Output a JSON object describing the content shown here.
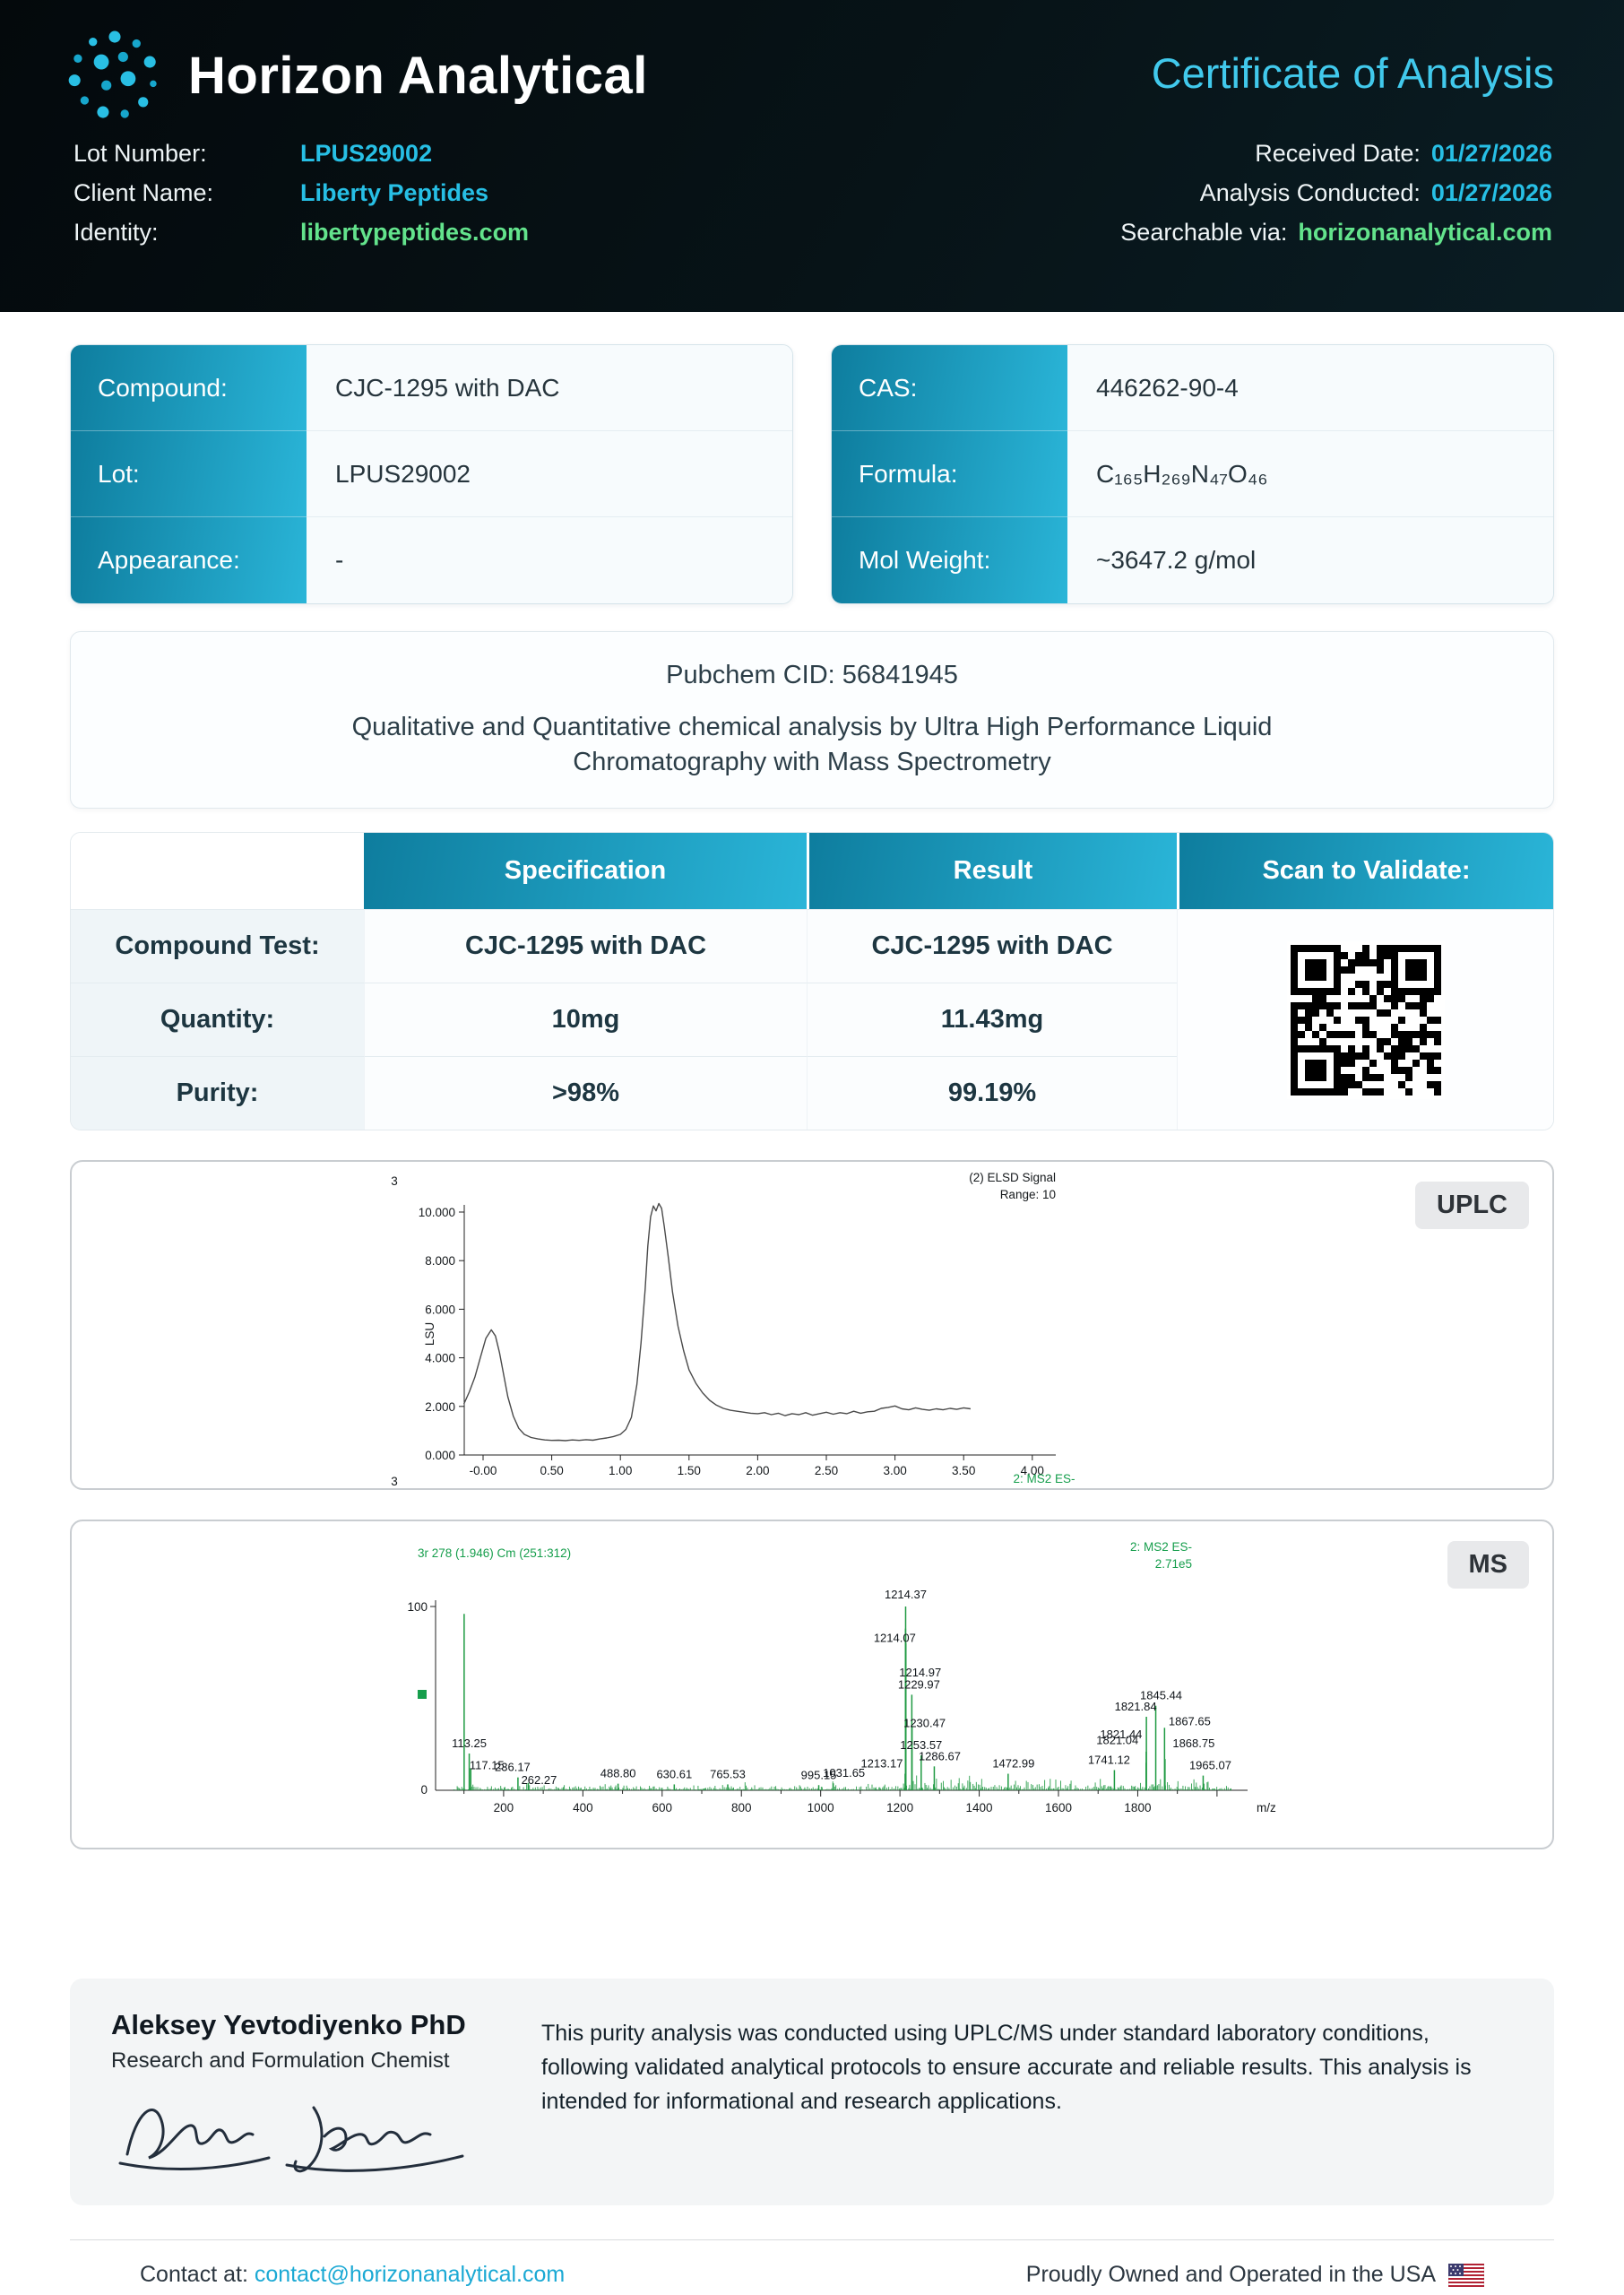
{
  "header": {
    "brand": "Horizon Analytical",
    "title": "Certificate of Analysis",
    "lot_label": "Lot Number:",
    "lot_value": "LPUS29002",
    "client_label": "Client Name:",
    "client_value": "Liberty Peptides",
    "identity_label": "Identity:",
    "identity_value": "libertypeptides.com",
    "received_label": "Received Date:",
    "received_value": "01/27/2026",
    "analysis_label": "Analysis Conducted:",
    "analysis_value": "01/27/2026",
    "searchable_label": "Searchable via:",
    "searchable_value": "horizonanalytical.com"
  },
  "compound_table": [
    {
      "label": "Compound:",
      "value": "CJC-1295 with DAC"
    },
    {
      "label": "Lot:",
      "value": "LPUS29002"
    },
    {
      "label": "Appearance:",
      "value": "-"
    }
  ],
  "analysis_table": [
    {
      "label": "CAS:",
      "value": "446262-90-4"
    },
    {
      "label": "Formula:",
      "value": "C₁₆₅H₂₆₉N₄₇O₄₆"
    },
    {
      "label": "Mol Weight:",
      "value": "~3647.2 g/mol"
    }
  ],
  "pubchem": {
    "cid_line": "Pubchem CID: 56841945",
    "description": "Qualitative and Quantitative chemical analysis by Ultra High Performance Liquid Chromatography with Mass Spectrometry"
  },
  "results": {
    "headers": {
      "spec": "Specification",
      "result": "Result",
      "scan": "Scan to Validate:"
    },
    "rows": [
      {
        "label": "Compound Test:",
        "spec": "CJC-1295 with DAC",
        "result": "CJC-1295 with DAC"
      },
      {
        "label": "Quantity:",
        "spec": "10mg",
        "result": "11.43mg"
      },
      {
        "label": "Purity:",
        "spec": ">98%",
        "result": "99.19%"
      }
    ]
  },
  "chart_data": [
    {
      "type": "line",
      "panel_label": "UPLC",
      "title": "(2) ELSD Signal",
      "range_label": "Range: 10",
      "channel_top": "3",
      "channel_bottom": "3",
      "bottom_right_label": "2: MS2 ES-",
      "ylabel": "LSU",
      "xticks": [
        "-0.00",
        "0.50",
        "1.00",
        "1.50",
        "2.00",
        "2.50",
        "3.00",
        "3.50",
        "4.00"
      ],
      "yticks": [
        "0.000",
        "2.000",
        "4.000",
        "6.000",
        "8.000",
        "10.000"
      ],
      "xlim": [
        -0.15,
        4.3
      ],
      "ylim": [
        0,
        10.8
      ],
      "x": [
        -0.14,
        -0.1,
        -0.06,
        -0.02,
        0.02,
        0.06,
        0.09,
        0.12,
        0.15,
        0.18,
        0.22,
        0.26,
        0.3,
        0.35,
        0.4,
        0.45,
        0.5,
        0.55,
        0.6,
        0.65,
        0.7,
        0.75,
        0.8,
        0.85,
        0.9,
        0.95,
        1.0,
        1.04,
        1.08,
        1.12,
        1.15,
        1.18,
        1.2,
        1.22,
        1.24,
        1.26,
        1.28,
        1.3,
        1.32,
        1.35,
        1.38,
        1.42,
        1.46,
        1.5,
        1.55,
        1.6,
        1.65,
        1.7,
        1.75,
        1.8,
        1.85,
        1.9,
        1.95,
        2.0,
        2.05,
        2.1,
        2.15,
        2.2,
        2.25,
        2.3,
        2.35,
        2.4,
        2.45,
        2.5,
        2.55,
        2.6,
        2.65,
        2.7,
        2.75,
        2.8,
        2.85,
        2.9,
        2.95,
        3.0,
        3.05,
        3.1,
        3.15,
        3.2,
        3.25,
        3.3,
        3.35,
        3.4,
        3.45,
        3.5,
        3.55
      ],
      "y": [
        2.1,
        2.6,
        3.2,
        4.0,
        4.8,
        5.15,
        4.9,
        4.2,
        3.3,
        2.4,
        1.6,
        1.1,
        0.85,
        0.72,
        0.66,
        0.62,
        0.6,
        0.61,
        0.59,
        0.62,
        0.6,
        0.63,
        0.61,
        0.66,
        0.7,
        0.76,
        0.85,
        1.05,
        1.55,
        2.9,
        4.6,
        6.8,
        8.6,
        9.8,
        10.25,
        10.05,
        10.35,
        10.15,
        9.4,
        8.1,
        6.7,
        5.3,
        4.3,
        3.5,
        2.95,
        2.55,
        2.25,
        2.05,
        1.92,
        1.84,
        1.8,
        1.76,
        1.72,
        1.7,
        1.74,
        1.66,
        1.72,
        1.62,
        1.7,
        1.66,
        1.74,
        1.64,
        1.7,
        1.76,
        1.68,
        1.74,
        1.7,
        1.8,
        1.72,
        1.78,
        1.8,
        1.92,
        1.96,
        2.02,
        1.9,
        1.86,
        1.94,
        1.88,
        1.84,
        1.9,
        1.86,
        1.92,
        1.88,
        1.94,
        1.9
      ]
    },
    {
      "type": "ms-spectrum",
      "panel_label": "MS",
      "header_left": "3r 278 (1.946) Cm (251:312)",
      "header_right_1": "2: MS2 ES-",
      "header_right_2": "2.71e5",
      "xlabel": "m/z",
      "ymax_label": "100",
      "ymin_label": "0",
      "xticks": [
        200,
        400,
        600,
        800,
        1000,
        1200,
        1400,
        1600,
        1800
      ],
      "xlim": [
        60,
        2050
      ],
      "ylim": [
        0,
        100
      ],
      "peaks": [
        {
          "mz": 100.4,
          "i": 96
        },
        {
          "mz": 113.25,
          "i": 20,
          "label": "113.25"
        },
        {
          "mz": 117.15,
          "i": 12,
          "label": "117.15",
          "dx": 18,
          "dy": 8
        },
        {
          "mz": 236.17,
          "i": 7,
          "label": "236.17",
          "dx": -6
        },
        {
          "mz": 262.27,
          "i": 4,
          "label": "262.27",
          "dx": 12,
          "dy": 8
        },
        {
          "mz": 488.8,
          "i": 3.6,
          "label": "488.80"
        },
        {
          "mz": 630.61,
          "i": 3.2,
          "label": "630.61"
        },
        {
          "mz": 765.53,
          "i": 3.2,
          "label": "765.53"
        },
        {
          "mz": 995.15,
          "i": 2.8,
          "label": "995.15"
        },
        {
          "mz": 1031.65,
          "i": 3.8,
          "label": "1031.65",
          "dx": 12
        },
        {
          "mz": 1213.17,
          "i": 9,
          "label": "1213.17",
          "dx": -26
        },
        {
          "mz": 1214.07,
          "i": 88,
          "label": "1214.07",
          "dx": -12,
          "dy": 22
        },
        {
          "mz": 1214.37,
          "i": 100,
          "label": "1214.37",
          "dy": -2
        },
        {
          "mz": 1214.97,
          "i": 80,
          "label": "1214.97",
          "dx": 16,
          "dy": 44
        },
        {
          "mz": 1229.97,
          "i": 52,
          "label": "1229.97",
          "dx": 8
        },
        {
          "mz": 1230.47,
          "i": 35,
          "label": "1230.47",
          "dx": 14,
          "dy": 8
        },
        {
          "mz": 1253.57,
          "i": 19,
          "label": "1253.57"
        },
        {
          "mz": 1286.67,
          "i": 13,
          "label": "1286.67",
          "dx": 6
        },
        {
          "mz": 1472.99,
          "i": 9,
          "label": "1472.99",
          "dx": 6
        },
        {
          "mz": 1741.12,
          "i": 11,
          "label": "1741.12",
          "dx": -6
        },
        {
          "mz": 1821.04,
          "i": 15,
          "label": "1821.04",
          "dx": -32,
          "dy": -14
        },
        {
          "mz": 1821.44,
          "i": 21,
          "label": "1821.44",
          "dx": -28,
          "dy": -8
        },
        {
          "mz": 1821.84,
          "i": 40,
          "label": "1821.84",
          "dx": -12
        },
        {
          "mz": 1845.44,
          "i": 46,
          "label": "1845.44",
          "dx": 6
        },
        {
          "mz": 1867.65,
          "i": 34,
          "label": "1867.65",
          "dx": 28,
          "dy": 4
        },
        {
          "mz": 1868.75,
          "i": 17,
          "label": "1868.75",
          "dx": 32,
          "dy": -6
        },
        {
          "mz": 1965.07,
          "i": 8,
          "label": "1965.07",
          "dx": 8
        }
      ]
    }
  ],
  "footer": {
    "name": "Aleksey Yevtodiyenko PhD",
    "role": "Research and Formulation Chemist",
    "note": "This purity analysis was conducted using UPLC/MS under standard laboratory conditions, following validated analytical protocols to ensure accurate and reliable results. This analysis is intended for informational and research applications."
  },
  "bottom": {
    "contact_label": "Contact at:",
    "contact_email": "contact@horizonanalytical.com",
    "made_in": "Proudly Owned and Operated in the USA"
  },
  "colors": {
    "accent_cyan": "#27bfe5",
    "accent_green": "#63e38c",
    "table_teal_dark": "#0e7d9e",
    "table_teal_light": "#2ab5d8",
    "ms_trace_green": "#1f9a42",
    "uplc_trace_gray": "#4a4a4a"
  }
}
